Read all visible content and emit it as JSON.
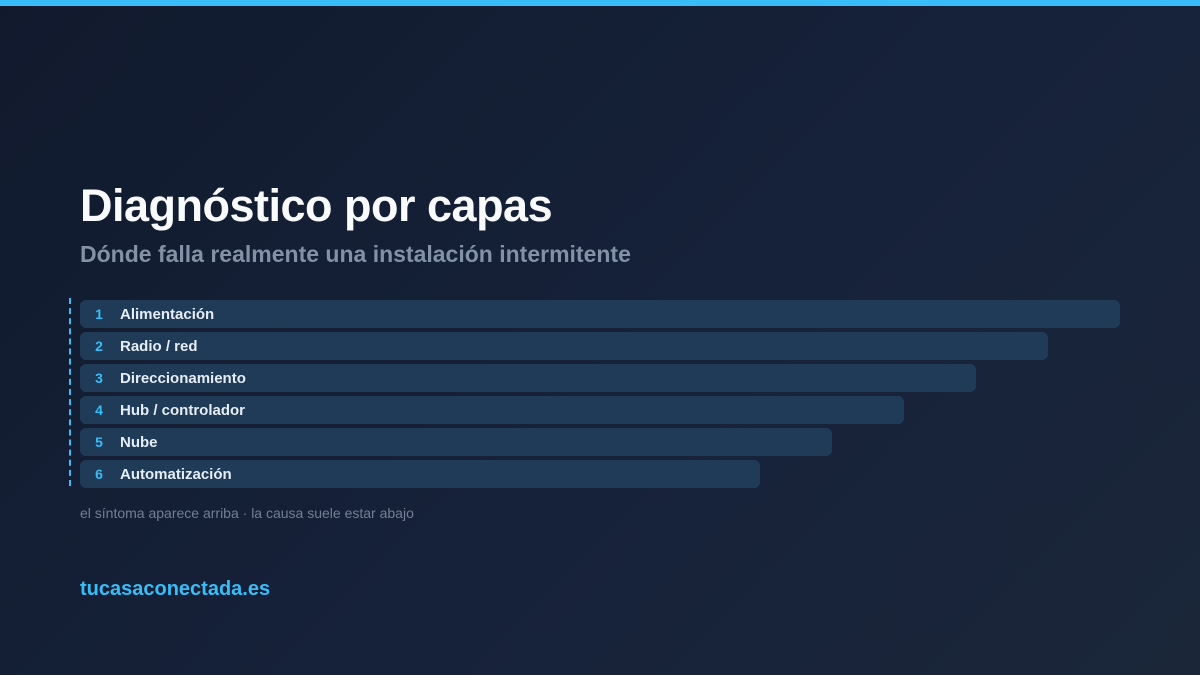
{
  "colors": {
    "accent": "#38bdf8",
    "bar": "#1f3b58",
    "background": "#131c30"
  },
  "title": "Diagnóstico por capas",
  "subtitle": "Dónde falla realmente una instalación intermitente",
  "layers": [
    {
      "number": "1",
      "label": "Alimentación"
    },
    {
      "number": "2",
      "label": "Radio / red"
    },
    {
      "number": "3",
      "label": "Direccionamiento"
    },
    {
      "number": "4",
      "label": "Hub / controlador"
    },
    {
      "number": "5",
      "label": "Nube"
    },
    {
      "number": "6",
      "label": "Automatización"
    }
  ],
  "note": "el síntoma aparece arriba · la causa suele estar abajo",
  "site": "tucasaconectada.es"
}
